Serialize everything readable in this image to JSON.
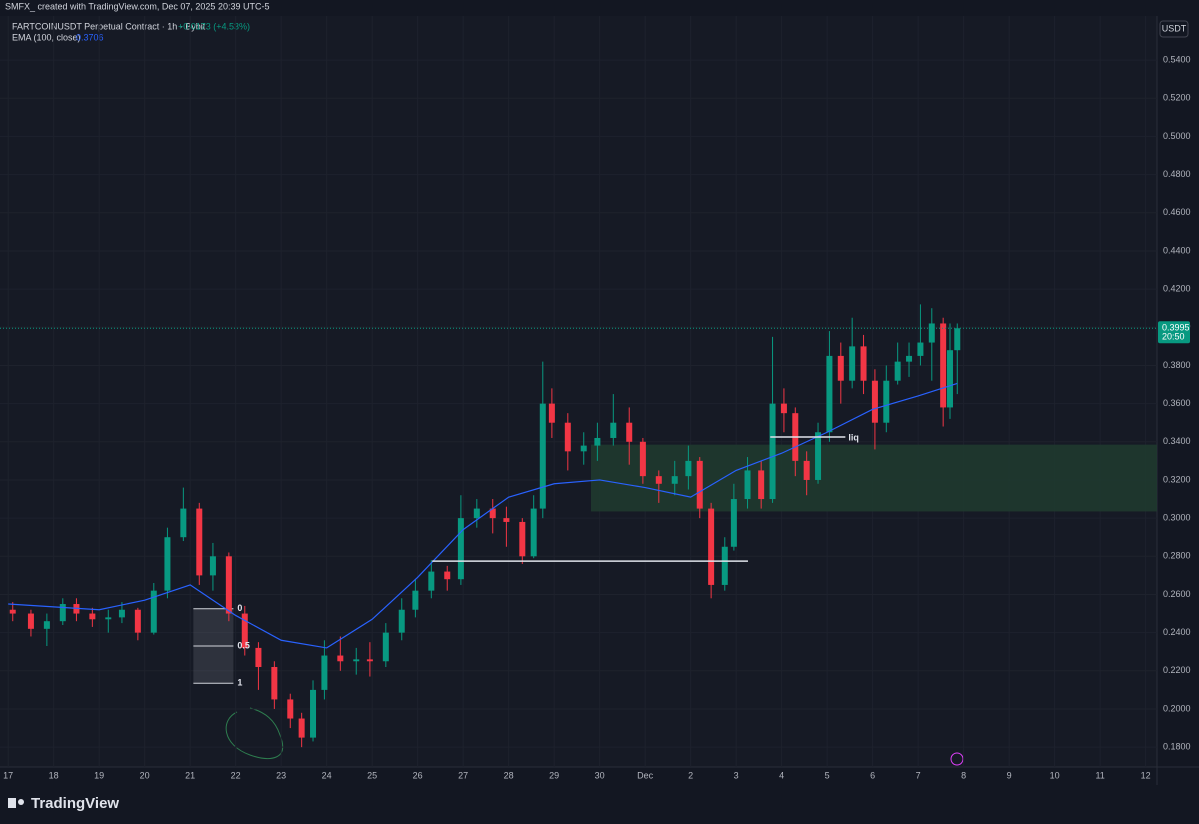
{
  "chart_data": {
    "type": "candlestick",
    "watermark": "SMFX_ created with TradingView.com, Dec 07, 2025 20:39 UTC-5",
    "symbol": "FARTCOINUSDT Perpetual Contract · 1h · Bybit",
    "change": "+0.0173 (+4.53%)",
    "currency": "USDT",
    "countdown": "20:50",
    "brand": "TradingView",
    "up_color": "#089981",
    "down_color": "#f23645",
    "xlim": [
      -0.18,
      25.25
    ],
    "ylim": [
      0.1696,
      0.5631
    ],
    "xticks": [
      {
        "value": 0,
        "label": "17"
      },
      {
        "value": 1,
        "label": "18"
      },
      {
        "value": 2,
        "label": "19"
      },
      {
        "value": 3,
        "label": "20"
      },
      {
        "value": 4,
        "label": "21"
      },
      {
        "value": 5,
        "label": "22"
      },
      {
        "value": 6,
        "label": "23"
      },
      {
        "value": 7,
        "label": "24"
      },
      {
        "value": 8,
        "label": "25"
      },
      {
        "value": 9,
        "label": "26"
      },
      {
        "value": 10,
        "label": "27"
      },
      {
        "value": 11,
        "label": "28"
      },
      {
        "value": 12,
        "label": "29"
      },
      {
        "value": 13,
        "label": "30"
      },
      {
        "value": 14,
        "label": "Dec"
      },
      {
        "value": 15,
        "label": "2"
      },
      {
        "value": 16,
        "label": "3"
      },
      {
        "value": 17,
        "label": "4"
      },
      {
        "value": 18,
        "label": "5"
      },
      {
        "value": 19,
        "label": "6"
      },
      {
        "value": 20,
        "label": "7"
      },
      {
        "value": 21,
        "label": "8"
      },
      {
        "value": 22,
        "label": "9"
      },
      {
        "value": 23,
        "label": "10"
      },
      {
        "value": 24,
        "label": "11"
      },
      {
        "value": 25,
        "label": "12"
      }
    ],
    "yticks": [
      {
        "value": 0.18,
        "label": "0.1800"
      },
      {
        "value": 0.2,
        "label": "0.2000"
      },
      {
        "value": 0.22,
        "label": "0.2200"
      },
      {
        "value": 0.24,
        "label": "0.2400"
      },
      {
        "value": 0.26,
        "label": "0.2600"
      },
      {
        "value": 0.28,
        "label": "0.2800"
      },
      {
        "value": 0.3,
        "label": "0.3000"
      },
      {
        "value": 0.32,
        "label": "0.3200"
      },
      {
        "value": 0.34,
        "label": "0.3400"
      },
      {
        "value": 0.36,
        "label": "0.3600"
      },
      {
        "value": 0.38,
        "label": "0.3800"
      },
      {
        "value": 0.4,
        "label": "0.4000"
      },
      {
        "value": 0.42,
        "label": "0.4200"
      },
      {
        "value": 0.44,
        "label": "0.4400"
      },
      {
        "value": 0.46,
        "label": "0.4600"
      },
      {
        "value": 0.48,
        "label": "0.4800"
      },
      {
        "value": 0.5,
        "label": "0.5000"
      },
      {
        "value": 0.52,
        "label": "0.5200"
      },
      {
        "value": 0.54,
        "label": "0.5400"
      }
    ],
    "x": [
      0.1,
      0.5,
      0.85,
      1.2,
      1.5,
      1.85,
      2.2,
      2.5,
      2.85,
      3.2,
      3.5,
      3.85,
      4.2,
      4.5,
      4.85,
      5.2,
      5.5,
      5.85,
      6.2,
      6.45,
      6.7,
      6.95,
      7.3,
      7.65,
      7.95,
      8.3,
      8.65,
      8.95,
      9.3,
      9.65,
      9.95,
      10.3,
      10.65,
      10.95,
      11.3,
      11.55,
      11.75,
      11.95,
      12.3,
      12.65,
      12.95,
      13.3,
      13.65,
      13.95,
      14.3,
      14.65,
      14.95,
      15.2,
      15.45,
      15.75,
      15.95,
      16.25,
      16.55,
      16.8,
      17.05,
      17.3,
      17.55,
      17.8,
      18.05,
      18.3,
      18.55,
      18.8,
      19.05,
      19.3,
      19.55,
      19.8,
      20.05,
      20.3,
      20.55,
      20.7,
      20.86
    ],
    "open": [
      0.252,
      0.25,
      0.242,
      0.246,
      0.255,
      0.25,
      0.247,
      0.248,
      0.252,
      0.24,
      0.262,
      0.29,
      0.305,
      0.27,
      0.28,
      0.25,
      0.232,
      0.222,
      0.205,
      0.195,
      0.185,
      0.21,
      0.228,
      0.225,
      0.226,
      0.225,
      0.24,
      0.252,
      0.262,
      0.272,
      0.268,
      0.3,
      0.305,
      0.3,
      0.298,
      0.28,
      0.305,
      0.36,
      0.35,
      0.335,
      0.338,
      0.342,
      0.35,
      0.34,
      0.322,
      0.318,
      0.322,
      0.33,
      0.305,
      0.265,
      0.285,
      0.31,
      0.325,
      0.31,
      0.36,
      0.355,
      0.33,
      0.32,
      0.345,
      0.385,
      0.372,
      0.39,
      0.372,
      0.35,
      0.372,
      0.382,
      0.385,
      0.392,
      0.402,
      0.358,
      0.388
    ],
    "high": [
      0.256,
      0.252,
      0.25,
      0.258,
      0.258,
      0.253,
      0.252,
      0.256,
      0.253,
      0.266,
      0.295,
      0.316,
      0.308,
      0.287,
      0.282,
      0.254,
      0.235,
      0.225,
      0.208,
      0.198,
      0.215,
      0.236,
      0.238,
      0.232,
      0.235,
      0.245,
      0.258,
      0.268,
      0.278,
      0.275,
      0.312,
      0.31,
      0.31,
      0.306,
      0.3,
      0.312,
      0.382,
      0.368,
      0.355,
      0.345,
      0.35,
      0.365,
      0.358,
      0.342,
      0.325,
      0.33,
      0.338,
      0.332,
      0.308,
      0.29,
      0.318,
      0.332,
      0.33,
      0.395,
      0.368,
      0.358,
      0.335,
      0.35,
      0.398,
      0.392,
      0.405,
      0.396,
      0.378,
      0.38,
      0.392,
      0.392,
      0.412,
      0.41,
      0.405,
      0.402,
      0.402
    ],
    "low": [
      0.246,
      0.238,
      0.233,
      0.244,
      0.246,
      0.243,
      0.24,
      0.245,
      0.236,
      0.239,
      0.258,
      0.288,
      0.265,
      0.262,
      0.246,
      0.228,
      0.21,
      0.2,
      0.19,
      0.18,
      0.183,
      0.205,
      0.22,
      0.218,
      0.217,
      0.222,
      0.236,
      0.248,
      0.258,
      0.262,
      0.265,
      0.295,
      0.292,
      0.285,
      0.276,
      0.279,
      0.3,
      0.342,
      0.325,
      0.328,
      0.33,
      0.338,
      0.328,
      0.318,
      0.308,
      0.312,
      0.315,
      0.3,
      0.258,
      0.262,
      0.283,
      0.305,
      0.305,
      0.308,
      0.345,
      0.322,
      0.312,
      0.318,
      0.34,
      0.36,
      0.368,
      0.365,
      0.336,
      0.345,
      0.37,
      0.374,
      0.38,
      0.372,
      0.348,
      0.352,
      0.365
    ],
    "close": [
      0.25,
      0.242,
      0.246,
      0.255,
      0.25,
      0.247,
      0.248,
      0.252,
      0.24,
      0.262,
      0.29,
      0.305,
      0.27,
      0.28,
      0.25,
      0.232,
      0.222,
      0.205,
      0.195,
      0.185,
      0.21,
      0.228,
      0.225,
      0.226,
      0.225,
      0.24,
      0.252,
      0.262,
      0.272,
      0.268,
      0.3,
      0.305,
      0.3,
      0.298,
      0.28,
      0.305,
      0.36,
      0.35,
      0.335,
      0.338,
      0.342,
      0.35,
      0.34,
      0.322,
      0.318,
      0.322,
      0.33,
      0.305,
      0.265,
      0.285,
      0.31,
      0.325,
      0.31,
      0.36,
      0.355,
      0.33,
      0.32,
      0.345,
      0.385,
      0.372,
      0.39,
      0.372,
      0.35,
      0.372,
      0.382,
      0.385,
      0.392,
      0.402,
      0.358,
      0.388,
      0.3995
    ],
    "ema": {
      "name": "EMA (100, close)",
      "color": "#2962ff",
      "x": [
        0,
        2,
        3,
        4,
        5,
        6,
        7,
        8,
        9,
        10,
        11,
        12,
        13,
        14,
        15,
        16,
        17,
        18,
        19,
        20,
        20.86
      ],
      "values": [
        0.255,
        0.252,
        0.257,
        0.265,
        0.249,
        0.236,
        0.232,
        0.247,
        0.269,
        0.294,
        0.311,
        0.318,
        0.32,
        0.316,
        0.311,
        0.325,
        0.334,
        0.345,
        0.357,
        0.364,
        0.3706
      ]
    },
    "zone": {
      "x": 12.81,
      "y": [
        0.3035,
        0.3385
      ],
      "color": "#1f3a2f"
    },
    "lines": [
      {
        "x": [
          9.32,
          16.26
        ],
        "y": 0.2775
      },
      {
        "x": [
          16.75,
          18.4
        ],
        "y": 0.3425,
        "label": "liq"
      }
    ],
    "fib": {
      "x": [
        4.07,
        4.95
      ],
      "levels": [
        {
          "value": 0.2525,
          "label": "0"
        },
        {
          "value": 0.233,
          "label": "0.5"
        },
        {
          "value": 0.2135,
          "label": "1"
        }
      ]
    }
  }
}
